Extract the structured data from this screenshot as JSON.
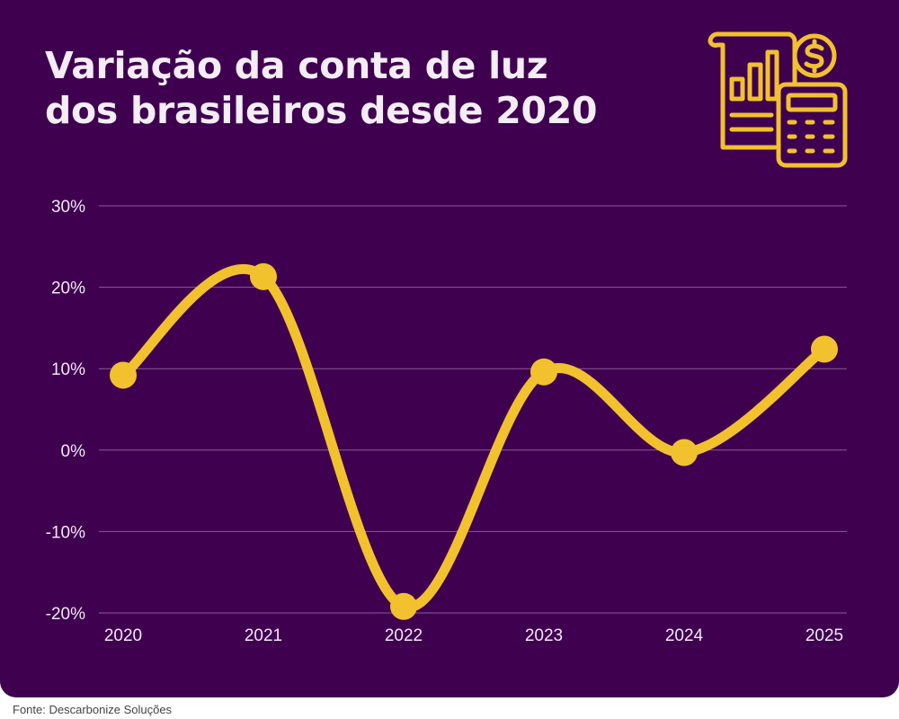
{
  "header": {
    "title_line1": "Variação da conta de luz",
    "title_line2": "dos brasileiros desde 2020"
  },
  "icon": {
    "name": "financial-report-calculator-icon"
  },
  "footer": {
    "source": "Fonte: Descarbonize Soluções"
  },
  "colors": {
    "background": "#3f0050",
    "line": "#f2c12e",
    "grid": "#8a5c98",
    "text": "#f1e9f3"
  },
  "chart_data": {
    "type": "line",
    "categories": [
      "2020",
      "2021",
      "2022",
      "2023",
      "2024",
      "2025"
    ],
    "series": [
      {
        "values": [
          9.2,
          21.3,
          -19.2,
          9.6,
          -0.3,
          12.4
        ]
      }
    ],
    "yticks": [
      "30%",
      "20%",
      "10%",
      "0%",
      "-10%",
      "-20%"
    ],
    "ytick_values": [
      30,
      20,
      10,
      0,
      -10,
      -20
    ],
    "ylim": [
      -20,
      30
    ],
    "grid": true,
    "legend": "none",
    "smooth": true
  }
}
